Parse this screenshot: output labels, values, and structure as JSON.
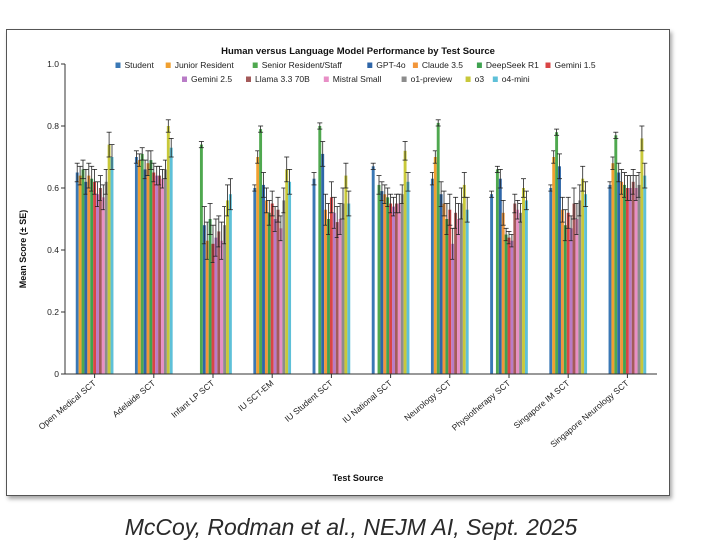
{
  "citation": "McCoy, Rodman et al., NEJM AI, Sept. 2025",
  "chart_data": {
    "type": "bar",
    "title": "Human versus Language Model Performance by Test Source",
    "xlabel": "Test Source",
    "ylabel": "Mean Score (± SE)",
    "ylim": [
      0,
      1.0
    ],
    "yticks": [
      "0",
      "0.2",
      "0.4",
      "0.6",
      "0.8",
      "1.0"
    ],
    "error_bars": true,
    "legend_position": "top-center",
    "categories": [
      "Open Medical SCT",
      "Adelaide SCT",
      "Infant LP SCT",
      "IU SCT-EM",
      "IU Student SCT",
      "IU National SCT",
      "Neurology SCT",
      "Physiotherapy SCT",
      "Singapore IM SCT",
      "Singapore Neurology SCT"
    ],
    "series": [
      {
        "name": "Student",
        "color": "#3a78b5",
        "values": [
          0.65,
          0.7,
          null,
          0.6,
          0.63,
          0.67,
          0.63,
          0.58,
          0.6,
          0.61
        ],
        "errors": [
          0.03,
          0.02,
          null,
          0.01,
          0.02,
          0.01,
          0.02,
          0.01,
          0.01,
          0.01
        ]
      },
      {
        "name": "Junior Resident",
        "color": "#f0a030",
        "values": [
          0.64,
          0.69,
          null,
          0.7,
          null,
          null,
          0.7,
          null,
          0.7,
          0.68
        ],
        "errors": [
          0.03,
          0.02,
          null,
          0.02,
          null,
          null,
          0.02,
          null,
          0.02,
          0.02
        ]
      },
      {
        "name": "Senior Resident/Staff",
        "color": "#4fa84f",
        "values": [
          0.66,
          0.71,
          0.74,
          0.79,
          0.8,
          0.61,
          0.81,
          0.66,
          0.78,
          0.77
        ],
        "errors": [
          0.03,
          0.02,
          0.01,
          0.01,
          0.01,
          0.03,
          0.01,
          0.01,
          0.01,
          0.01
        ]
      },
      {
        "name": "GPT-4o",
        "color": "#2f66a8",
        "values": [
          0.62,
          0.66,
          0.48,
          0.61,
          0.71,
          0.59,
          0.58,
          0.63,
          0.67,
          0.65
        ],
        "errors": [
          0.04,
          0.03,
          0.06,
          0.04,
          0.04,
          0.03,
          0.04,
          0.03,
          0.04,
          0.03
        ]
      },
      {
        "name": "Claude 3.5",
        "color": "#f2963a",
        "values": [
          0.64,
          0.68,
          0.43,
          0.56,
          0.53,
          0.58,
          0.55,
          0.52,
          0.53,
          0.62
        ],
        "errors": [
          0.04,
          0.04,
          0.06,
          0.04,
          0.05,
          0.03,
          0.04,
          0.04,
          0.04,
          0.04
        ]
      },
      {
        "name": "DeepSeek R1",
        "color": "#3fa250",
        "values": [
          0.63,
          0.69,
          0.5,
          0.52,
          0.5,
          0.57,
          0.5,
          0.45,
          0.48,
          0.61
        ],
        "errors": [
          0.04,
          0.03,
          0.05,
          0.04,
          0.05,
          0.03,
          0.05,
          0.02,
          0.05,
          0.04
        ]
      },
      {
        "name": "Gemini 1.5",
        "color": "#d94545",
        "values": [
          0.62,
          0.65,
          0.42,
          0.55,
          0.57,
          0.55,
          0.53,
          0.44,
          0.52,
          0.6
        ],
        "errors": [
          0.04,
          0.03,
          0.06,
          0.04,
          0.05,
          0.03,
          0.05,
          0.02,
          0.05,
          0.04
        ]
      },
      {
        "name": "Gemini 2.5",
        "color": "#b97cc7",
        "values": [
          0.58,
          0.64,
          0.44,
          0.5,
          0.52,
          0.54,
          0.42,
          0.43,
          0.47,
          0.6
        ],
        "errors": [
          0.04,
          0.03,
          0.06,
          0.04,
          0.05,
          0.03,
          0.05,
          0.02,
          0.04,
          0.04
        ]
      },
      {
        "name": "Llama 3.3 70B",
        "color": "#a45a5a",
        "values": [
          0.6,
          0.64,
          0.46,
          0.53,
          0.49,
          0.55,
          0.52,
          0.55,
          0.55,
          0.62
        ],
        "errors": [
          0.04,
          0.03,
          0.05,
          0.04,
          0.05,
          0.03,
          0.05,
          0.03,
          0.05,
          0.04
        ]
      },
      {
        "name": "Mistral Small",
        "color": "#e88fc6",
        "values": [
          0.57,
          0.63,
          0.43,
          0.47,
          0.5,
          0.55,
          0.5,
          0.53,
          0.5,
          0.6
        ],
        "errors": [
          0.04,
          0.03,
          0.06,
          0.04,
          0.05,
          0.03,
          0.05,
          0.03,
          0.05,
          0.04
        ]
      },
      {
        "name": "o1-preview",
        "color": "#8c8c8c",
        "values": [
          0.62,
          0.66,
          0.48,
          0.56,
          0.55,
          0.58,
          0.55,
          0.52,
          0.56,
          0.61
        ],
        "errors": [
          0.04,
          0.03,
          0.06,
          0.04,
          0.05,
          0.03,
          0.05,
          0.03,
          0.05,
          0.04
        ]
      },
      {
        "name": "o3",
        "color": "#c8c83a",
        "values": [
          0.74,
          0.8,
          0.56,
          0.66,
          0.64,
          0.72,
          0.61,
          0.6,
          0.63,
          0.76
        ],
        "errors": [
          0.04,
          0.02,
          0.05,
          0.04,
          0.04,
          0.03,
          0.04,
          0.03,
          0.04,
          0.04
        ]
      },
      {
        "name": "o4-mini",
        "color": "#5ec0d8",
        "values": [
          0.7,
          0.73,
          0.58,
          0.62,
          0.55,
          0.62,
          0.53,
          0.56,
          0.58,
          0.64
        ],
        "errors": [
          0.04,
          0.03,
          0.05,
          0.04,
          0.04,
          0.03,
          0.04,
          0.03,
          0.04,
          0.04
        ]
      }
    ]
  }
}
